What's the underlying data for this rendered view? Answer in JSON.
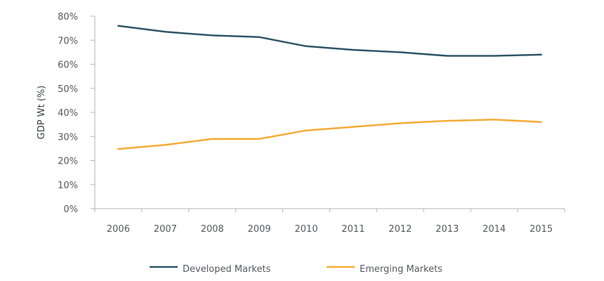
{
  "chart_data": {
    "type": "line",
    "title": "",
    "xlabel": "",
    "ylabel": "GDP Wt (%)",
    "categories": [
      "2006",
      "2007",
      "2008",
      "2009",
      "2010",
      "2011",
      "2012",
      "2013",
      "2014",
      "2015"
    ],
    "ylim": [
      0,
      80
    ],
    "yticks": [
      0,
      10,
      20,
      30,
      40,
      50,
      60,
      70,
      80
    ],
    "ytick_labels": [
      "0%",
      "10%",
      "20%",
      "30%",
      "40%",
      "50%",
      "60%",
      "70%",
      "80%"
    ],
    "grid": false,
    "legend_position": "bottom-center",
    "series": [
      {
        "name": "Developed Markets",
        "color": "#2f5568",
        "values": [
          76,
          73.5,
          72,
          71.3,
          67.5,
          66,
          65,
          63.5,
          63.5,
          64
        ]
      },
      {
        "name": "Emerging Markets",
        "color": "#f5ab35",
        "values": [
          24.8,
          26.5,
          29,
          29,
          32.5,
          34,
          35.5,
          36.5,
          37,
          36
        ]
      }
    ]
  },
  "colors": {
    "axis": "#b3b3b3",
    "text": "#555a5f"
  }
}
